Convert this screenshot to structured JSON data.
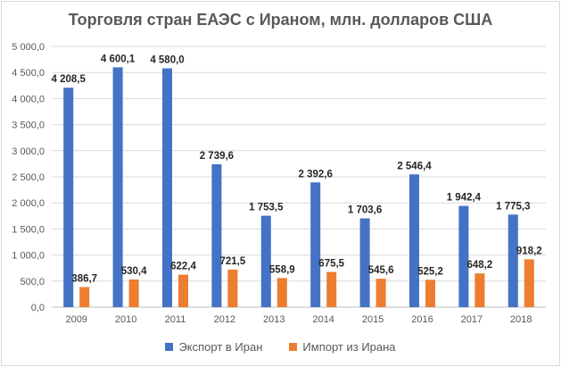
{
  "chart_data": {
    "type": "bar",
    "title": "Торговля стран ЕАЭС с Ираном, млн. долларов США",
    "categories": [
      "2009",
      "2010",
      "2011",
      "2012",
      "2013",
      "2014",
      "2015",
      "2016",
      "2017",
      "2018"
    ],
    "series": [
      {
        "name": "Экспорт в Иран",
        "color": "#4472c4",
        "values": [
          4208.5,
          4600.1,
          4580.0,
          2739.6,
          1753.5,
          2392.6,
          1703.6,
          2546.4,
          1942.4,
          1775.3
        ],
        "labels": [
          "4 208,5",
          "4 600,1",
          "4 580,0",
          "2 739,6",
          "1 753,5",
          "2 392,6",
          "1 703,6",
          "2 546,4",
          "1 942,4",
          "1 775,3"
        ]
      },
      {
        "name": "Импорт из Ирана",
        "color": "#ed7d31",
        "values": [
          386.7,
          530.4,
          622.4,
          721.5,
          558.9,
          675.5,
          545.6,
          525.2,
          648.2,
          918.2
        ],
        "labels": [
          "386,7",
          "530,4",
          "622,4",
          "721,5",
          "558,9",
          "675,5",
          "545,6",
          "525,2",
          "648,2",
          "918,2"
        ]
      }
    ],
    "ylim": [
      0,
      5000
    ],
    "yticks": [
      0,
      500,
      1000,
      1500,
      2000,
      2500,
      3000,
      3500,
      4000,
      4500,
      5000
    ],
    "ytick_labels": [
      "0,0",
      "500,0",
      "1 000,0",
      "1 500,0",
      "2 000,0",
      "2 500,0",
      "3 000,0",
      "3 500,0",
      "4 000,0",
      "4 500,0",
      "5 000,0"
    ],
    "xlabel": "",
    "ylabel": "",
    "grid": true,
    "legend_position": "bottom"
  }
}
